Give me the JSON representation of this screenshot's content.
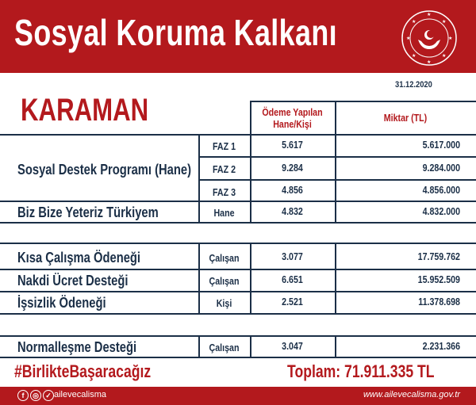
{
  "header": {
    "title": "Sosyal Koruma Kalkanı",
    "logo_text": "T.C. AİLE, ÇALIŞMA VE SOSYAL HİZMETLER BAKANLIĞI"
  },
  "date": "31.12.2020",
  "city": "KARAMAN",
  "columns": {
    "count_line1": "Ödeme Yapılan",
    "count_line2": "Hane/Kişi",
    "amount": "Miktar (TL)"
  },
  "sdp": {
    "label": "Sosyal Destek Programı (Hane)",
    "rows": [
      {
        "unit": "FAZ 1",
        "count": "5.617",
        "amount": "5.617.000"
      },
      {
        "unit": "FAZ 2",
        "count": "9.284",
        "amount": "9.284.000"
      },
      {
        "unit": "FAZ 3",
        "count": "4.856",
        "amount": "4.856.000"
      }
    ]
  },
  "rows": [
    {
      "label": "Biz Bize Yeteriz Türkiyem",
      "unit": "Hane",
      "count": "4.832",
      "amount": "4.832.000"
    },
    {
      "label": "Kısa Çalışma Ödeneği",
      "unit": "Çalışan",
      "count": "3.077",
      "amount": "17.759.762"
    },
    {
      "label": "Nakdi Ücret Desteği",
      "unit": "Çalışan",
      "count": "6.651",
      "amount": "15.952.509"
    },
    {
      "label": "İşsizlik Ödeneği",
      "unit": "Kişi",
      "count": "2.521",
      "amount": "11.378.698"
    },
    {
      "label": "Normalleşme Desteği",
      "unit": "Çalışan",
      "count": "3.047",
      "amount": "2.231.366"
    }
  ],
  "hashtag": "#BirlikteBaşaracağız",
  "total": "Toplam: 71.911.335 TL",
  "footer": {
    "handle": "ailevecalisma",
    "url": "www.ailevecalisma.gov.tr",
    "icons": [
      "facebook-icon",
      "instagram-icon",
      "twitter-icon"
    ]
  },
  "colors": {
    "brand_red": "#b3191d",
    "navy": "#1b2f47"
  }
}
